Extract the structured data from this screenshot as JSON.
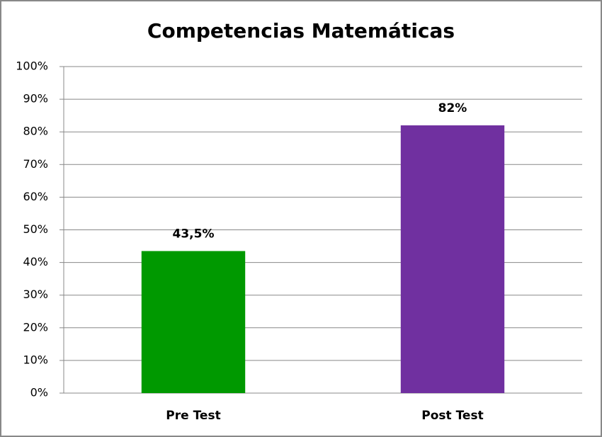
{
  "chart_data": {
    "type": "bar",
    "title": "Competencias  Matemáticas",
    "categories": [
      "Pre Test",
      "Post Test"
    ],
    "values": [
      43.5,
      82
    ],
    "value_labels": [
      "43,5%",
      "82%"
    ],
    "colors": [
      "#009900",
      "#7030a0"
    ],
    "ylim": [
      0,
      100
    ],
    "yticks": [
      {
        "value": 0,
        "label": "0%"
      },
      {
        "value": 10,
        "label": "10%"
      },
      {
        "value": 20,
        "label": "20%"
      },
      {
        "value": 30,
        "label": "30%"
      },
      {
        "value": 40,
        "label": "40%"
      },
      {
        "value": 50,
        "label": "50%"
      },
      {
        "value": 60,
        "label": "60%"
      },
      {
        "value": 70,
        "label": "70%"
      },
      {
        "value": 80,
        "label": "80%"
      },
      {
        "value": 90,
        "label": "90%"
      },
      {
        "value": 100,
        "label": "100%"
      }
    ],
    "grid": true
  }
}
